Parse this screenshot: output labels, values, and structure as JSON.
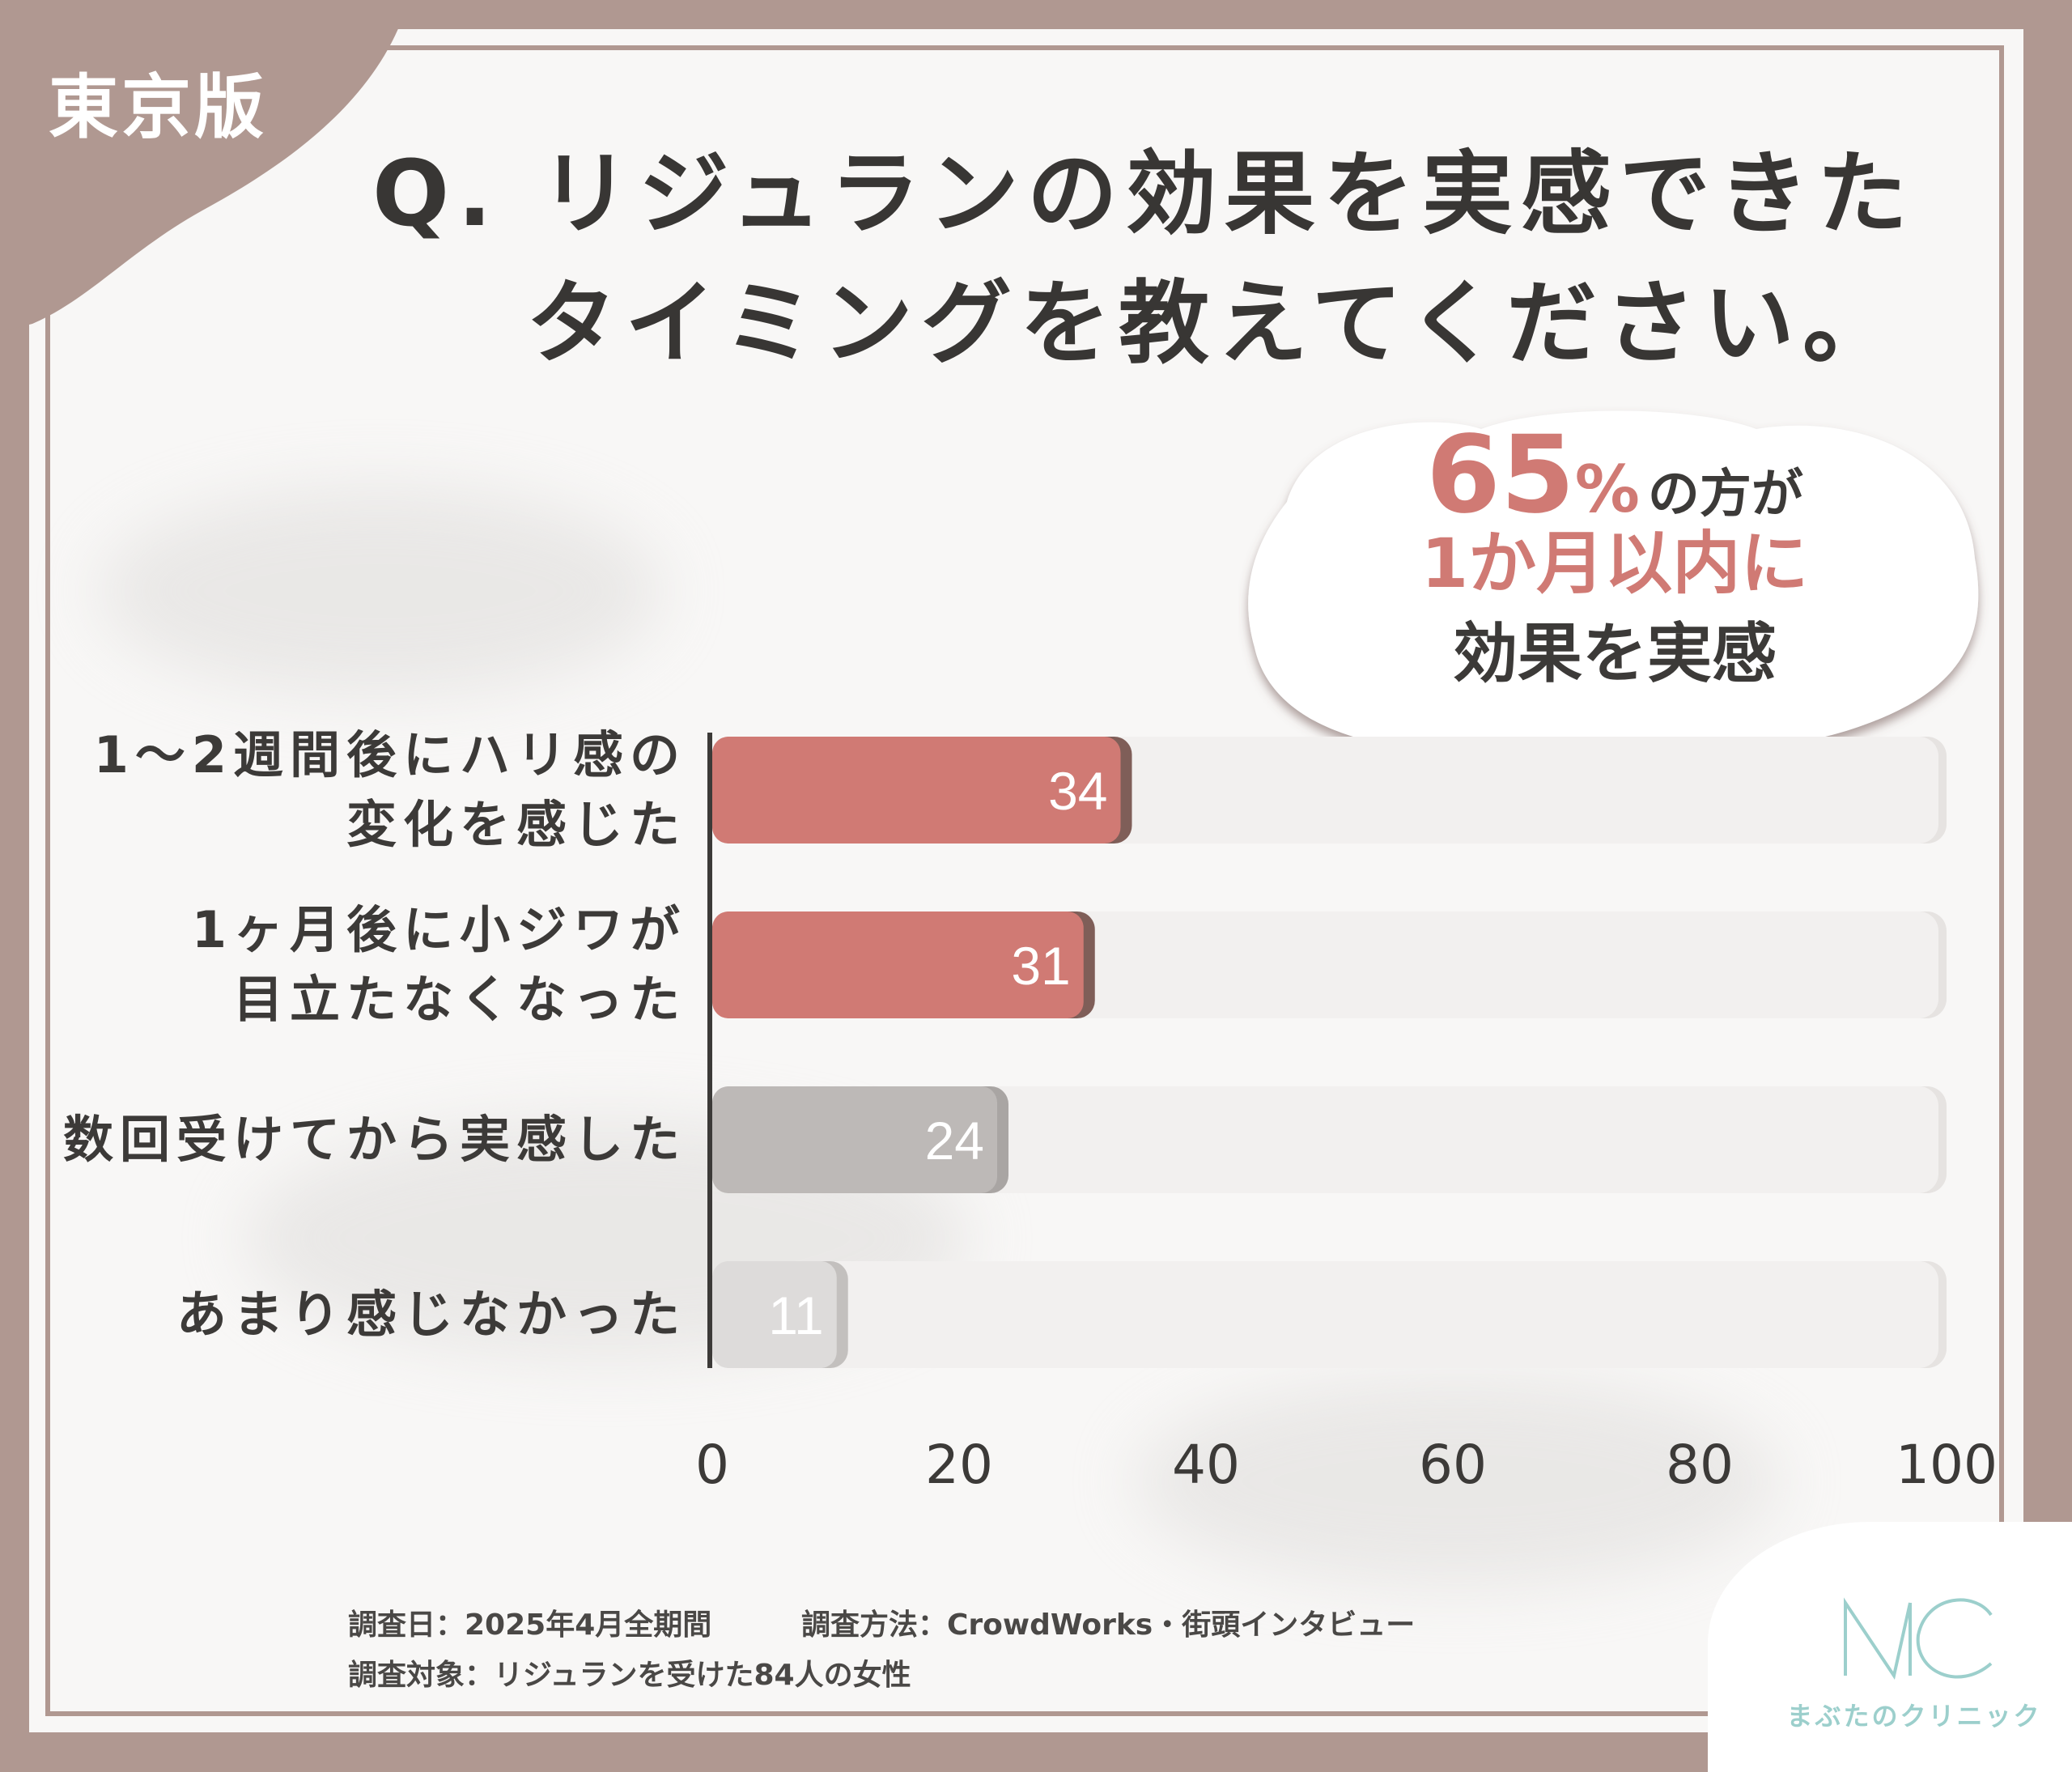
{
  "header": {
    "region_tag": "東京版",
    "title_line1": "Q. リジュランの効果を実感できた",
    "title_line2": "タイミングを教えてください。"
  },
  "callout": {
    "big_number": "65",
    "percent": "%",
    "line1_rest": "の方が",
    "line2": "1か月以内に",
    "line3": "効果を実感"
  },
  "chart_data": {
    "type": "bar",
    "orientation": "horizontal",
    "categories": [
      [
        "1～2週間後にハリ感の",
        "変化を感じた"
      ],
      [
        "1ヶ月後に小ジワが",
        "目立たなくなった"
      ],
      [
        "数回受けてから実感した"
      ],
      [
        "あまり感じなかった"
      ]
    ],
    "values": [
      34,
      31,
      24,
      11
    ],
    "value_labels": [
      "34",
      "31",
      "24",
      "11"
    ],
    "xlim": [
      0,
      100
    ],
    "xticks": [
      "0",
      "20",
      "40",
      "60",
      "80",
      "100"
    ],
    "grid": false,
    "colors": [
      "#d07a74",
      "#d07a74",
      "#bdb9b7",
      "#dddbda"
    ],
    "edge_colors": [
      "#7f5e58",
      "#7f5e58",
      "#a9a5a3",
      "#c3c0be"
    ],
    "track_color": "#f2f0ef"
  },
  "footer": {
    "survey_date": "調査日：2025年4月全期間",
    "survey_method": "調査方法：CrowdWorks・街頭インタビュー",
    "survey_target": "調査対象：リジュランを受けた84人の女性"
  },
  "brand": {
    "mark": "MC",
    "name": "まぶたのクリニック",
    "color": "#9ccfcc"
  }
}
